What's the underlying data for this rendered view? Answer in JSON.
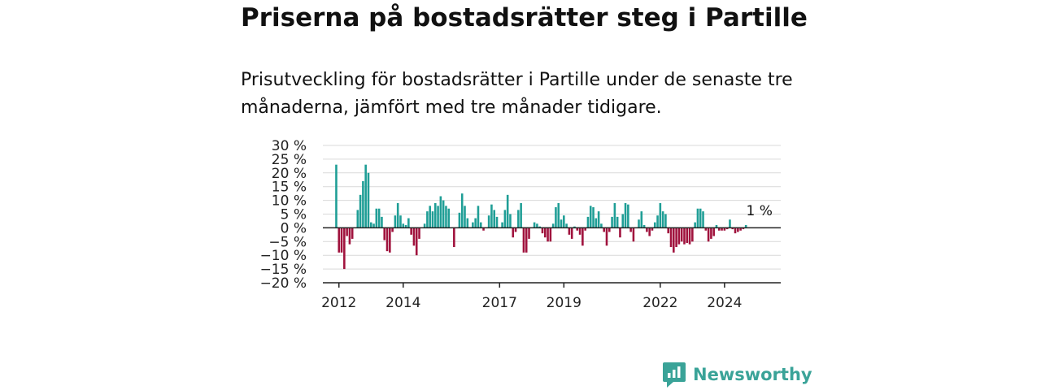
{
  "title": "Priserna på bostadsrätter steg i Partille",
  "subtitle": "Prisutveckling för bostadsrätter i Partille under de senaste tre månaderna, jämfört med tre månader tidigare.",
  "brand": {
    "name": "Newsworthy",
    "icon": "newsworthy-logo-icon"
  },
  "colors": {
    "positive": "#1f9e96",
    "negative": "#a0123d",
    "grid": "#d9d9d9",
    "axis": "#222222",
    "brand": "#3aa398"
  },
  "chart_data": {
    "type": "bar",
    "title": "Priserna på bostadsrätter steg i Partille",
    "xlabel": "",
    "ylabel": "",
    "ylim": [
      -20,
      30
    ],
    "yticks": [
      30,
      25,
      20,
      15,
      10,
      5,
      0,
      -5,
      -10,
      -15,
      -20
    ],
    "ytick_labels": [
      "30 %",
      "25 %",
      "20 %",
      "15 %",
      "10 %",
      "5 %",
      "0 %",
      "−5 %",
      "−10 %",
      "−15 %",
      "−20 %"
    ],
    "xlim": [
      "2011-07",
      "2025-10"
    ],
    "xticks": [
      {
        "date": "2012-01",
        "label": "2012"
      },
      {
        "date": "2014-01",
        "label": "2014"
      },
      {
        "date": "2017-01",
        "label": "2017"
      },
      {
        "date": "2019-01",
        "label": "2019"
      },
      {
        "date": "2022-01",
        "label": "2022"
      },
      {
        "date": "2024-01",
        "label": "2024"
      }
    ],
    "annotation": {
      "date": "2025-02",
      "text": "1 %"
    },
    "points": [
      [
        "2011-12",
        23
      ],
      [
        "2012-01",
        -9
      ],
      [
        "2012-02",
        -9
      ],
      [
        "2012-03",
        -15
      ],
      [
        "2012-04",
        -3
      ],
      [
        "2012-05",
        -6
      ],
      [
        "2012-06",
        -4
      ],
      [
        "2012-08",
        6.5
      ],
      [
        "2012-09",
        12
      ],
      [
        "2012-10",
        17
      ],
      [
        "2012-11",
        23
      ],
      [
        "2012-12",
        20
      ],
      [
        "2013-01",
        2
      ],
      [
        "2013-02",
        1.5
      ],
      [
        "2013-03",
        7
      ],
      [
        "2013-04",
        7
      ],
      [
        "2013-05",
        4
      ],
      [
        "2013-06",
        -4.5
      ],
      [
        "2013-07",
        -8.5
      ],
      [
        "2013-08",
        -9
      ],
      [
        "2013-09",
        -1.5
      ],
      [
        "2013-10",
        4.5
      ],
      [
        "2013-11",
        9
      ],
      [
        "2013-12",
        4.5
      ],
      [
        "2014-01",
        1.5
      ],
      [
        "2014-02",
        1
      ],
      [
        "2014-03",
        3.5
      ],
      [
        "2014-04",
        -2.5
      ],
      [
        "2014-05",
        -6.5
      ],
      [
        "2014-06",
        -10
      ],
      [
        "2014-07",
        -4
      ],
      [
        "2014-09",
        1.5
      ],
      [
        "2014-10",
        6
      ],
      [
        "2014-11",
        8
      ],
      [
        "2014-12",
        6
      ],
      [
        "2015-01",
        9
      ],
      [
        "2015-02",
        8
      ],
      [
        "2015-03",
        11.5
      ],
      [
        "2015-04",
        10
      ],
      [
        "2015-05",
        8
      ],
      [
        "2015-06",
        7
      ],
      [
        "2015-08",
        -7
      ],
      [
        "2015-10",
        5.5
      ],
      [
        "2015-11",
        12.5
      ],
      [
        "2015-12",
        8
      ],
      [
        "2016-01",
        3.5
      ],
      [
        "2016-03",
        2
      ],
      [
        "2016-04",
        3.5
      ],
      [
        "2016-05",
        8
      ],
      [
        "2016-06",
        2
      ],
      [
        "2016-07",
        -1
      ],
      [
        "2016-09",
        4.5
      ],
      [
        "2016-10",
        8.5
      ],
      [
        "2016-11",
        6.5
      ],
      [
        "2016-12",
        4
      ],
      [
        "2017-02",
        2
      ],
      [
        "2017-03",
        6.5
      ],
      [
        "2017-04",
        12
      ],
      [
        "2017-05",
        5
      ],
      [
        "2017-06",
        -3.5
      ],
      [
        "2017-07",
        -1.5
      ],
      [
        "2017-08",
        6.5
      ],
      [
        "2017-09",
        9
      ],
      [
        "2017-10",
        -9
      ],
      [
        "2017-11",
        -9
      ],
      [
        "2017-12",
        -4
      ],
      [
        "2018-02",
        2
      ],
      [
        "2018-03",
        1.5
      ],
      [
        "2018-04",
        0.5
      ],
      [
        "2018-05",
        -2
      ],
      [
        "2018-06",
        -3.5
      ],
      [
        "2018-07",
        -5
      ],
      [
        "2018-08",
        -5
      ],
      [
        "2018-09",
        1.5
      ],
      [
        "2018-10",
        7.5
      ],
      [
        "2018-11",
        9
      ],
      [
        "2018-12",
        3
      ],
      [
        "2019-01",
        4.5
      ],
      [
        "2019-02",
        1.5
      ],
      [
        "2019-03",
        -2.5
      ],
      [
        "2019-04",
        -4
      ],
      [
        "2019-05",
        0.5
      ],
      [
        "2019-06",
        -1
      ],
      [
        "2019-07",
        -2.5
      ],
      [
        "2019-08",
        -6.5
      ],
      [
        "2019-09",
        -1
      ],
      [
        "2019-10",
        4
      ],
      [
        "2019-11",
        8
      ],
      [
        "2019-12",
        7.5
      ],
      [
        "2020-01",
        3.5
      ],
      [
        "2020-02",
        6
      ],
      [
        "2020-03",
        1.5
      ],
      [
        "2020-04",
        -1.5
      ],
      [
        "2020-05",
        -6.5
      ],
      [
        "2020-06",
        -1.5
      ],
      [
        "2020-07",
        4
      ],
      [
        "2020-08",
        9
      ],
      [
        "2020-09",
        4
      ],
      [
        "2020-10",
        -3.5
      ],
      [
        "2020-11",
        5
      ],
      [
        "2020-12",
        9
      ],
      [
        "2021-01",
        8.5
      ],
      [
        "2021-02",
        -1.5
      ],
      [
        "2021-03",
        -5
      ],
      [
        "2021-05",
        3
      ],
      [
        "2021-06",
        6
      ],
      [
        "2021-07",
        1
      ],
      [
        "2021-08",
        -1.5
      ],
      [
        "2021-09",
        -3
      ],
      [
        "2021-10",
        -1
      ],
      [
        "2021-11",
        2
      ],
      [
        "2021-12",
        4.5
      ],
      [
        "2022-01",
        9
      ],
      [
        "2022-02",
        6
      ],
      [
        "2022-03",
        5
      ],
      [
        "2022-04",
        -2
      ],
      [
        "2022-05",
        -7
      ],
      [
        "2022-06",
        -9
      ],
      [
        "2022-07",
        -7
      ],
      [
        "2022-08",
        -6
      ],
      [
        "2022-09",
        -5
      ],
      [
        "2022-10",
        -6
      ],
      [
        "2022-11",
        -5.5
      ],
      [
        "2022-12",
        -6
      ],
      [
        "2023-01",
        -5
      ],
      [
        "2023-02",
        2
      ],
      [
        "2023-03",
        7
      ],
      [
        "2023-04",
        7
      ],
      [
        "2023-05",
        6
      ],
      [
        "2023-06",
        -1
      ],
      [
        "2023-07",
        -5
      ],
      [
        "2023-08",
        -4
      ],
      [
        "2023-09",
        -3
      ],
      [
        "2023-10",
        1
      ],
      [
        "2023-11",
        -1
      ],
      [
        "2023-12",
        -1
      ],
      [
        "2024-01",
        -1
      ],
      [
        "2024-02",
        -0.5
      ],
      [
        "2024-03",
        3
      ],
      [
        "2024-04",
        -0.5
      ],
      [
        "2024-05",
        -2
      ],
      [
        "2024-06",
        -1.5
      ],
      [
        "2024-07",
        -1
      ],
      [
        "2024-08",
        -0.5
      ],
      [
        "2024-09",
        1
      ]
    ]
  }
}
